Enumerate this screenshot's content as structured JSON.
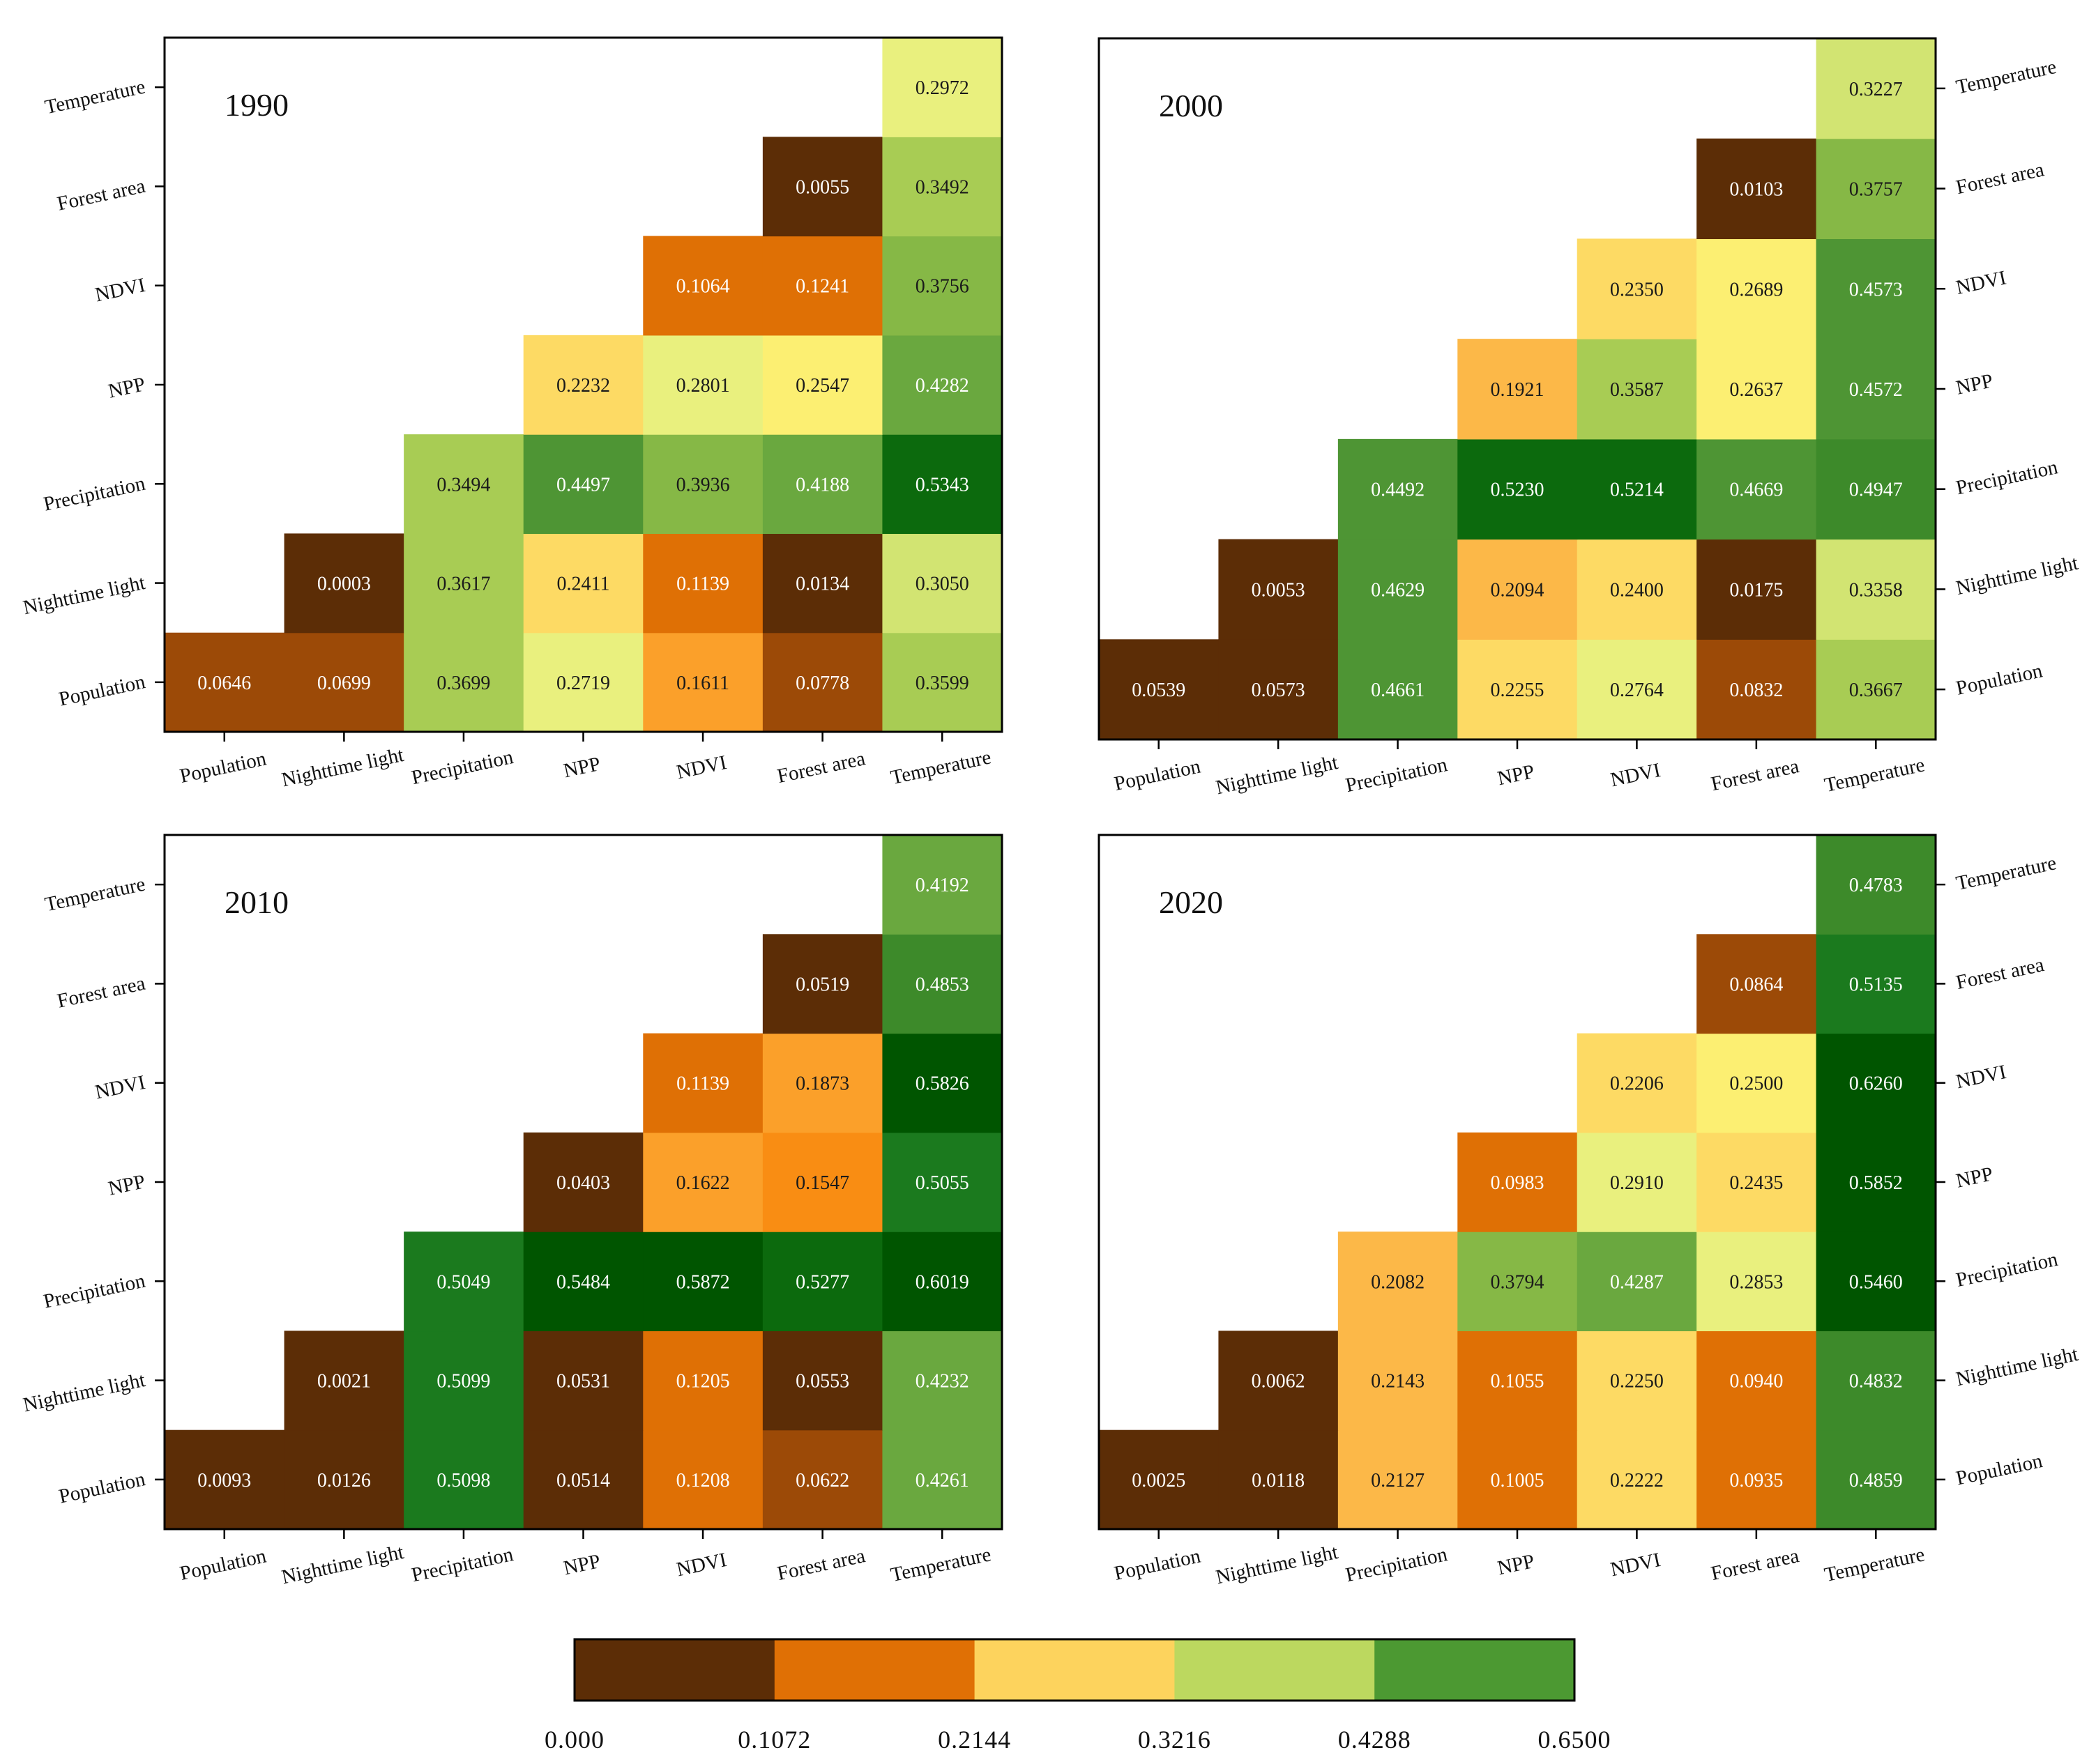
{
  "chart_data": [
    {
      "type": "heatmap",
      "title": "1990",
      "categories": [
        "Population",
        "Nighttime light",
        "Precipitation",
        "NPP",
        "NDVI",
        "Forest area",
        "Temperature"
      ],
      "values": [
        [
          0.0646,
          0.0699,
          0.3699,
          0.2719,
          0.1611,
          0.0778,
          0.3599
        ],
        [
          null,
          0.0003,
          0.3617,
          0.2411,
          0.1139,
          0.0134,
          0.305
        ],
        [
          null,
          null,
          0.3494,
          0.4497,
          0.3936,
          0.4188,
          0.5343
        ],
        [
          null,
          null,
          null,
          0.2232,
          0.2801,
          0.2547,
          0.4282
        ],
        [
          null,
          null,
          null,
          null,
          0.1064,
          0.1241,
          0.3756
        ],
        [
          null,
          null,
          null,
          null,
          null,
          0.0055,
          0.3492
        ],
        [
          null,
          null,
          null,
          null,
          null,
          null,
          0.2972
        ]
      ],
      "labels": [
        [
          "0.0646",
          "0.0699",
          "0.3699",
          "0.2719",
          "0.1611",
          "0.0778",
          "0.3599"
        ],
        [
          null,
          "0.0003",
          "0.3617",
          "0.2411",
          "0.1139",
          "0.0134",
          "0.3050"
        ],
        [
          null,
          null,
          "0.3494",
          "0.4497",
          "0.3936",
          "0.4188",
          "0.5343"
        ],
        [
          null,
          null,
          null,
          "0.2232",
          "0.2801",
          "0.2547",
          "0.4282"
        ],
        [
          null,
          null,
          null,
          null,
          "0.1064",
          "0.1241",
          "0.3756"
        ],
        [
          null,
          null,
          null,
          null,
          null,
          "0.0055",
          "0.3492"
        ],
        [
          null,
          null,
          null,
          null,
          null,
          null,
          "0.2972"
        ]
      ],
      "y_axis_side": "left"
    },
    {
      "type": "heatmap",
      "title": "2000",
      "categories": [
        "Population",
        "Nighttime light",
        "Precipitation",
        "NPP",
        "NDVI",
        "Forest area",
        "Temperature"
      ],
      "values": [
        [
          0.0539,
          0.0573,
          0.4661,
          0.2255,
          0.2764,
          0.0832,
          0.3667
        ],
        [
          null,
          0.0053,
          0.4629,
          0.2094,
          0.24,
          0.0175,
          0.3358
        ],
        [
          null,
          null,
          0.4492,
          0.523,
          0.5214,
          0.4669,
          0.4947
        ],
        [
          null,
          null,
          null,
          0.1921,
          0.3587,
          0.2637,
          0.4572
        ],
        [
          null,
          null,
          null,
          null,
          0.235,
          0.2689,
          0.4573
        ],
        [
          null,
          null,
          null,
          null,
          null,
          0.0103,
          0.3757
        ],
        [
          null,
          null,
          null,
          null,
          null,
          null,
          0.3227
        ]
      ],
      "labels": [
        [
          "0.0539",
          "0.0573",
          "0.4661",
          "0.2255",
          "0.2764",
          "0.0832",
          "0.3667"
        ],
        [
          null,
          "0.0053",
          "0.4629",
          "0.2094",
          "0.2400",
          "0.0175",
          "0.3358"
        ],
        [
          null,
          null,
          "0.4492",
          "0.5230",
          "0.5214",
          "0.4669",
          "0.4947"
        ],
        [
          null,
          null,
          null,
          "0.1921",
          "0.3587",
          "0.2637",
          "0.4572"
        ],
        [
          null,
          null,
          null,
          null,
          "0.2350",
          "0.2689",
          "0.4573"
        ],
        [
          null,
          null,
          null,
          null,
          null,
          "0.0103",
          "0.3757"
        ],
        [
          null,
          null,
          null,
          null,
          null,
          null,
          "0.3227"
        ]
      ],
      "y_axis_side": "right"
    },
    {
      "type": "heatmap",
      "title": "2010",
      "categories": [
        "Population",
        "Nighttime light",
        "Precipitation",
        "NPP",
        "NDVI",
        "Forest area",
        "Temperature"
      ],
      "values": [
        [
          0.0093,
          0.0126,
          0.5098,
          0.0514,
          0.1208,
          0.0622,
          0.4261
        ],
        [
          null,
          0.0021,
          0.5099,
          0.0531,
          0.1205,
          0.0553,
          0.4232
        ],
        [
          null,
          null,
          0.5049,
          0.5484,
          0.5872,
          0.5277,
          0.6019
        ],
        [
          null,
          null,
          null,
          0.0403,
          0.1622,
          0.1547,
          0.5055
        ],
        [
          null,
          null,
          null,
          null,
          0.1139,
          0.1873,
          0.5826
        ],
        [
          null,
          null,
          null,
          null,
          null,
          0.0519,
          0.4853
        ],
        [
          null,
          null,
          null,
          null,
          null,
          null,
          0.4192
        ]
      ],
      "labels": [
        [
          "0.0093",
          "0.0126",
          "0.5098",
          "0.0514",
          "0.1208",
          "0.0622",
          "0.4261"
        ],
        [
          null,
          "0.0021",
          "0.5099",
          "0.0531",
          "0.1205",
          "0.0553",
          "0.4232"
        ],
        [
          null,
          null,
          "0.5049",
          "0.5484",
          "0.5872",
          "0.5277",
          "0.6019"
        ],
        [
          null,
          null,
          null,
          "0.0403",
          "0.1622",
          "0.1547",
          "0.5055"
        ],
        [
          null,
          null,
          null,
          null,
          "0.1139",
          "0.1873",
          "0.5826"
        ],
        [
          null,
          null,
          null,
          null,
          null,
          "0.0519",
          "0.4853"
        ],
        [
          null,
          null,
          null,
          null,
          null,
          null,
          "0.4192"
        ]
      ],
      "y_axis_side": "left"
    },
    {
      "type": "heatmap",
      "title": "2020",
      "categories": [
        "Population",
        "Nighttime light",
        "Precipitation",
        "NPP",
        "NDVI",
        "Forest area",
        "Temperature"
      ],
      "values": [
        [
          0.0025,
          0.0118,
          0.2127,
          0.1005,
          0.2222,
          0.0935,
          0.4859
        ],
        [
          null,
          0.0062,
          0.2143,
          0.1055,
          0.225,
          0.094,
          0.4832
        ],
        [
          null,
          null,
          0.2082,
          0.3794,
          0.4287,
          0.2853,
          0.546
        ],
        [
          null,
          null,
          null,
          0.0983,
          0.291,
          0.2435,
          0.5852
        ],
        [
          null,
          null,
          null,
          null,
          0.2206,
          0.25,
          0.626
        ],
        [
          null,
          null,
          null,
          null,
          null,
          0.0864,
          0.5135
        ],
        [
          null,
          null,
          null,
          null,
          null,
          null,
          0.4783
        ]
      ],
      "labels": [
        [
          "0.0025",
          "0.0118",
          "0.2127",
          "0.1005",
          "0.2222",
          "0.0935",
          "0.4859"
        ],
        [
          null,
          "0.0062",
          "0.2143",
          "0.1055",
          "0.2250",
          "0.0940",
          "0.4832"
        ],
        [
          null,
          null,
          "0.2082",
          "0.3794",
          "0.4287",
          "0.2853",
          "0.5460"
        ],
        [
          null,
          null,
          null,
          "0.0983",
          "0.2910",
          "0.2435",
          "0.5852"
        ],
        [
          null,
          null,
          null,
          null,
          "0.2206",
          "0.2500",
          "0.6260"
        ],
        [
          null,
          null,
          null,
          null,
          null,
          "0.0864",
          "0.5135"
        ],
        [
          null,
          null,
          null,
          null,
          null,
          null,
          "0.4783"
        ]
      ],
      "y_axis_side": "right"
    }
  ],
  "colorbar": {
    "ticks": [
      0.0,
      0.1072,
      0.2144,
      0.3216,
      0.4288,
      0.65
    ],
    "tick_labels": [
      "0.000",
      "0.1072",
      "0.2144",
      "0.3216",
      "0.4288",
      "0.6500"
    ],
    "stops": [
      "#5c2d06",
      "#e07005",
      "#fdd35d",
      "#bcd85f",
      "#4c9932"
    ]
  },
  "colors": {
    "cell_palette": [
      {
        "max": 0.06,
        "color": "#5c2d06"
      },
      {
        "max": 0.09,
        "color": "#9c4a07"
      },
      {
        "max": 0.13,
        "color": "#df7005"
      },
      {
        "max": 0.16,
        "color": "#f98d13"
      },
      {
        "max": 0.19,
        "color": "#fba02a"
      },
      {
        "max": 0.215,
        "color": "#fcb848"
      },
      {
        "max": 0.245,
        "color": "#fdda64"
      },
      {
        "max": 0.27,
        "color": "#fcef72"
      },
      {
        "max": 0.3,
        "color": "#e9f07e"
      },
      {
        "max": 0.34,
        "color": "#d2e472"
      },
      {
        "max": 0.37,
        "color": "#a8cc54"
      },
      {
        "max": 0.4,
        "color": "#86b846"
      },
      {
        "max": 0.43,
        "color": "#6aa83f"
      },
      {
        "max": 0.47,
        "color": "#4e9534"
      },
      {
        "max": 0.5,
        "color": "#3d8a2a"
      },
      {
        "max": 0.52,
        "color": "#1b7a1e"
      },
      {
        "max": 0.54,
        "color": "#0c6a0d"
      },
      {
        "max": 10,
        "color": "#005500"
      }
    ],
    "light_text": "#ffffff",
    "dark_text": "#1a1a1a",
    "frame": "#000000"
  }
}
